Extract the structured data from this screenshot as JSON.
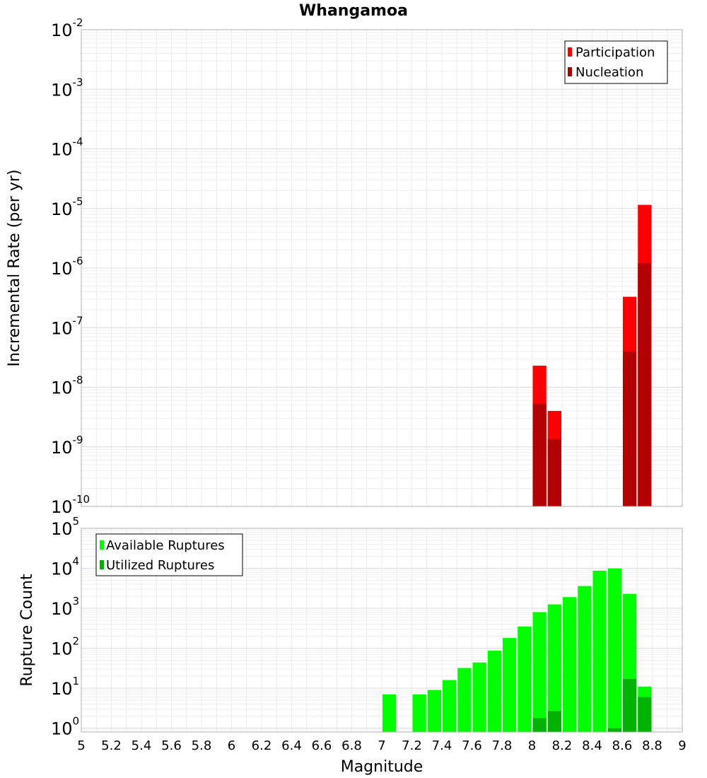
{
  "chart_data": [
    {
      "type": "bar",
      "title": "Whangamoa",
      "xlabel": "",
      "ylabel": "Incremental Rate (per yr)",
      "yscale": "log",
      "ylim": [
        1e-10,
        0.01
      ],
      "xlim": [
        5,
        9
      ],
      "x": [
        8.05,
        8.15,
        8.65,
        8.75
      ],
      "series": [
        {
          "name": "Participation",
          "color": "#ff0000",
          "values": [
            2.3e-08,
            4e-09,
            3.3e-07,
            1.15e-05
          ]
        },
        {
          "name": "Nucleation",
          "color": "#b30000",
          "values": [
            5.3e-09,
            1.35e-09,
            4e-08,
            1.2e-06
          ]
        }
      ],
      "legend_position": "top-right",
      "ytick_labels": [
        "10^-10",
        "10^-9",
        "10^-8",
        "10^-7",
        "10^-6",
        "10^-5",
        "10^-4",
        "10^-3",
        "10^-2"
      ]
    },
    {
      "type": "bar",
      "title": "",
      "xlabel": "Magnitude",
      "ylabel": "Rupture Count",
      "yscale": "log",
      "ylim": [
        0.8,
        100000
      ],
      "xlim": [
        5,
        9
      ],
      "x": [
        7.05,
        7.25,
        7.35,
        7.45,
        7.55,
        7.65,
        7.75,
        7.85,
        7.95,
        8.05,
        8.15,
        8.25,
        8.35,
        8.45,
        8.55,
        8.65,
        8.75
      ],
      "series": [
        {
          "name": "Available Ruptures",
          "color": "#00ff00",
          "values": [
            7,
            7,
            9,
            16,
            32,
            44,
            87,
            180,
            350,
            800,
            1250,
            1900,
            3600,
            8700,
            9900,
            2300,
            11
          ]
        },
        {
          "name": "Utilized Ruptures",
          "color": "#00b300",
          "x": [
            8.05,
            8.15,
            8.55,
            8.65,
            8.75
          ],
          "values": [
            1.8,
            2.7,
            1.0,
            17,
            6
          ]
        }
      ],
      "legend_position": "top-left",
      "ytick_labels": [
        "10^0",
        "10^1",
        "10^2",
        "10^3",
        "10^4",
        "10^5"
      ],
      "xtick_labels": [
        "5",
        "5.2",
        "5.4",
        "5.6",
        "5.8",
        "6",
        "6.2",
        "6.4",
        "6.6",
        "6.8",
        "7",
        "7.2",
        "7.4",
        "7.6",
        "7.8",
        "8",
        "8.2",
        "8.4",
        "8.6",
        "8.8",
        "9"
      ]
    }
  ]
}
